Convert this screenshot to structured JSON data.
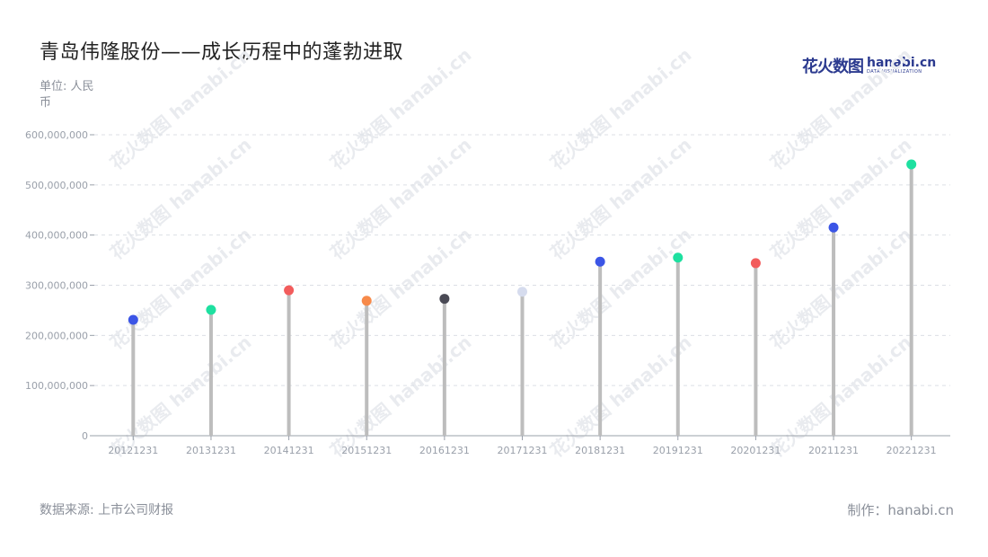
{
  "header": {
    "title": "青岛伟隆股份——成长历程中的蓬勃进取",
    "unit": "单位: 人民币"
  },
  "logo": {
    "cn_text": "花火数图",
    "en_text": "hanabi.cn",
    "tagline": "DATA VISUALIZATION",
    "color": "#2b3a8f"
  },
  "footer": {
    "source": "数据来源: 上市公司财报",
    "credit": "制作：hanabi.cn"
  },
  "chart_data": {
    "type": "lollipop",
    "categories": [
      "20121231",
      "20131231",
      "20141231",
      "20151231",
      "20161231",
      "20171231",
      "20181231",
      "20191231",
      "20201231",
      "20211231",
      "20221231"
    ],
    "values": [
      231000000,
      251000000,
      290000000,
      269000000,
      273000000,
      287000000,
      347000000,
      355000000,
      344000000,
      415000000,
      541000000
    ],
    "point_colors": [
      "#3b55e6",
      "#1ee0a0",
      "#f25c5c",
      "#f78a4a",
      "#4a4a55",
      "#d6dcee",
      "#3b55e6",
      "#1ee0a0",
      "#f25c5c",
      "#3b55e6",
      "#1ee0a0"
    ],
    "stem_color": "#bdbdbd",
    "ylim": [
      0,
      600000000
    ],
    "yticks": [
      "0",
      "100,000,000",
      "200,000,000",
      "300,000,000",
      "400,000,000",
      "500,000,000",
      "600,000,000"
    ],
    "ytick_values": [
      0,
      100000000,
      200000000,
      300000000,
      400000000,
      500000000,
      600000000
    ],
    "grid": true
  }
}
